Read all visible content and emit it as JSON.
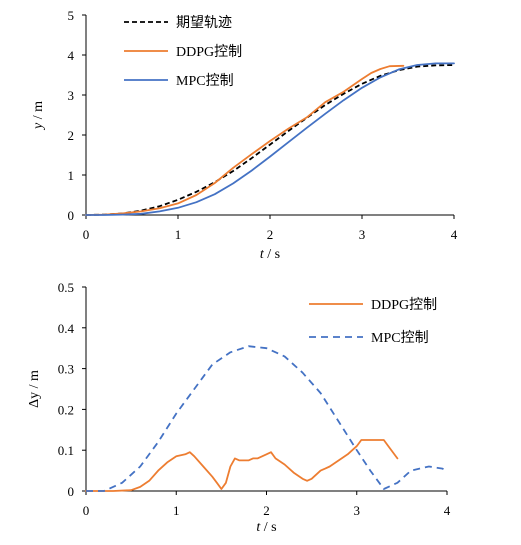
{
  "chart_data": [
    {
      "type": "line",
      "title": "",
      "xlabel_var": "t",
      "xlabel_unit": "/ s",
      "ylabel_var": "y",
      "ylabel_unit": "/ m",
      "xlim": [
        0,
        4
      ],
      "ylim": [
        0,
        5
      ],
      "xticks": [
        0,
        1,
        2,
        3,
        4
      ],
      "yticks": [
        0,
        1,
        2,
        3,
        4,
        5
      ],
      "grid": false,
      "legend_position": "top-left",
      "series": [
        {
          "name": "期望轨迹",
          "color": "#000000",
          "dash": "dashed",
          "x": [
            0,
            0.2,
            0.4,
            0.6,
            0.8,
            1.0,
            1.2,
            1.4,
            1.6,
            1.8,
            2.0,
            2.2,
            2.4,
            2.6,
            2.8,
            3.0,
            3.2,
            3.4,
            3.6,
            3.8,
            4.0
          ],
          "y": [
            0,
            0.01,
            0.04,
            0.11,
            0.22,
            0.38,
            0.58,
            0.82,
            1.1,
            1.42,
            1.76,
            2.1,
            2.43,
            2.75,
            3.03,
            3.28,
            3.48,
            3.62,
            3.71,
            3.74,
            3.75
          ]
        },
        {
          "name": "DDPG控制",
          "color": "#ED7D31",
          "dash": "solid",
          "x": [
            0,
            0.2,
            0.4,
            0.6,
            0.8,
            1.0,
            1.2,
            1.4,
            1.6,
            1.8,
            2.0,
            2.2,
            2.4,
            2.6,
            2.8,
            3.0,
            3.1,
            3.2,
            3.3,
            3.45
          ],
          "y": [
            0,
            0.01,
            0.04,
            0.09,
            0.17,
            0.29,
            0.5,
            0.8,
            1.18,
            1.52,
            1.85,
            2.16,
            2.44,
            2.82,
            3.08,
            3.4,
            3.55,
            3.65,
            3.72,
            3.73
          ]
        },
        {
          "name": "MPC控制",
          "color": "#4472C4",
          "dash": "solid",
          "x": [
            0,
            0.2,
            0.4,
            0.6,
            0.8,
            1.0,
            1.2,
            1.4,
            1.6,
            1.8,
            2.0,
            2.2,
            2.4,
            2.6,
            2.8,
            3.0,
            3.2,
            3.4,
            3.6,
            3.8,
            4.0
          ],
          "y": [
            0,
            0.0,
            0.01,
            0.03,
            0.09,
            0.18,
            0.32,
            0.52,
            0.79,
            1.11,
            1.46,
            1.82,
            2.18,
            2.53,
            2.87,
            3.18,
            3.44,
            3.64,
            3.75,
            3.79,
            3.79
          ]
        }
      ]
    },
    {
      "type": "line",
      "title": "",
      "xlabel_var": "t",
      "xlabel_unit": "/ s",
      "ylabel": "Δy / m",
      "xlim": [
        0,
        4
      ],
      "ylim": [
        0,
        0.5
      ],
      "xticks": [
        0,
        1,
        2,
        3,
        4
      ],
      "yticks": [
        "0",
        "0.1",
        "0.2",
        "0.3",
        "0.4",
        "0.5"
      ],
      "grid": false,
      "legend_position": "top-right",
      "series": [
        {
          "name": "DDPG控制",
          "color": "#ED7D31",
          "dash": "solid",
          "x": [
            0,
            0.3,
            0.5,
            0.6,
            0.7,
            0.8,
            0.9,
            1.0,
            1.1,
            1.15,
            1.2,
            1.3,
            1.4,
            1.45,
            1.5,
            1.55,
            1.6,
            1.65,
            1.7,
            1.8,
            1.85,
            1.9,
            2.0,
            2.05,
            2.1,
            2.2,
            2.3,
            2.4,
            2.45,
            2.5,
            2.6,
            2.65,
            2.7,
            2.8,
            2.9,
            3.0,
            3.05,
            3.1,
            3.2,
            3.3,
            3.35,
            3.45
          ],
          "y": [
            0,
            0.0,
            0.002,
            0.01,
            0.025,
            0.05,
            0.07,
            0.085,
            0.09,
            0.095,
            0.085,
            0.06,
            0.035,
            0.02,
            0.005,
            0.02,
            0.06,
            0.08,
            0.075,
            0.075,
            0.08,
            0.08,
            0.09,
            0.095,
            0.08,
            0.065,
            0.045,
            0.03,
            0.025,
            0.03,
            0.05,
            0.055,
            0.06,
            0.075,
            0.09,
            0.11,
            0.125,
            0.125,
            0.125,
            0.125,
            0.11,
            0.08
          ]
        },
        {
          "name": "MPC控制",
          "color": "#4472C4",
          "dash": "dashed",
          "x": [
            0,
            0.2,
            0.4,
            0.6,
            0.8,
            1.0,
            1.2,
            1.4,
            1.6,
            1.8,
            2.0,
            2.2,
            2.4,
            2.6,
            2.8,
            3.0,
            3.15,
            3.3,
            3.45,
            3.6,
            3.8,
            3.95,
            4.0
          ],
          "y": [
            0,
            0.0,
            0.02,
            0.06,
            0.12,
            0.19,
            0.25,
            0.31,
            0.34,
            0.355,
            0.35,
            0.33,
            0.29,
            0.24,
            0.17,
            0.1,
            0.05,
            0.005,
            0.02,
            0.05,
            0.06,
            0.055,
            0.048
          ]
        }
      ]
    }
  ]
}
